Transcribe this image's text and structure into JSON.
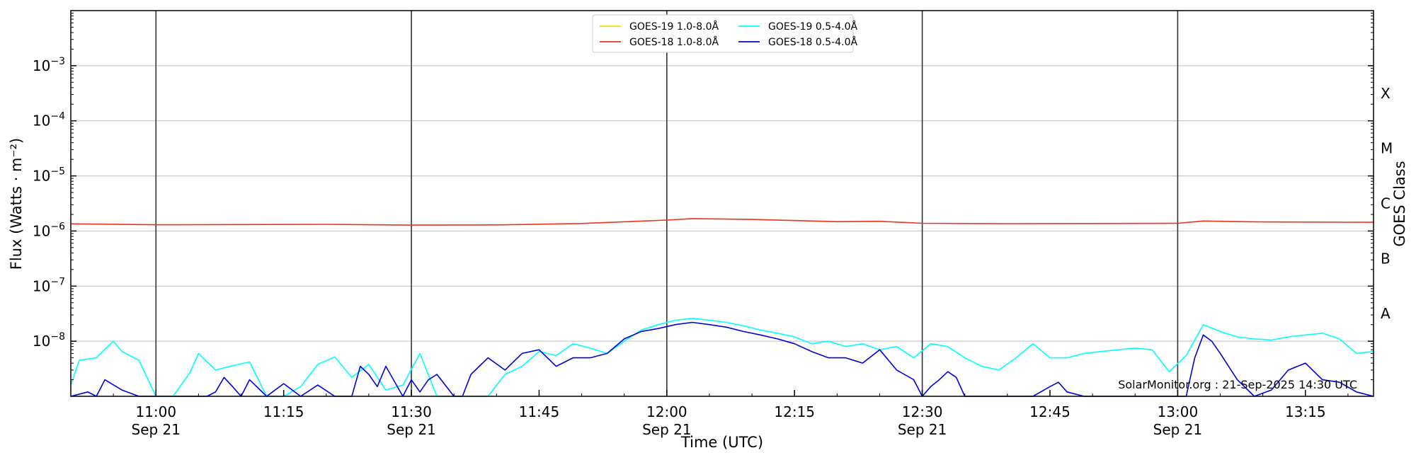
{
  "chart_data": {
    "type": "line",
    "xlabel": "Time (UTC)",
    "ylabel": "Flux (Watts · m⁻²)",
    "ylabel_right": "GOES Class",
    "y_scale": "log",
    "ylim": [
      1e-09,
      0.01
    ],
    "xlim": [
      "2025-09-21 10:50",
      "2025-09-21 13:23"
    ],
    "grid": "horizontal at decades; vertical lines every 30 min",
    "legend_position": "top-center",
    "y_tick_values": [
      0.001,
      0.0001,
      1e-05,
      1e-06,
      1e-07,
      1e-08
    ],
    "y_tick_labels": [
      {
        "base": "10",
        "exp": "−3"
      },
      {
        "base": "10",
        "exp": "−4"
      },
      {
        "base": "10",
        "exp": "−5"
      },
      {
        "base": "10",
        "exp": "−6"
      },
      {
        "base": "10",
        "exp": "−7"
      },
      {
        "base": "10",
        "exp": "−8"
      }
    ],
    "x_ticks": [
      {
        "time": "11:00",
        "label": "11:00",
        "date": "Sep 21",
        "major": true
      },
      {
        "time": "11:15",
        "label": "11:15",
        "date": "",
        "major": false
      },
      {
        "time": "11:30",
        "label": "11:30",
        "date": "Sep 21",
        "major": true
      },
      {
        "time": "11:45",
        "label": "11:45",
        "date": "",
        "major": false
      },
      {
        "time": "12:00",
        "label": "12:00",
        "date": "Sep 21",
        "major": true
      },
      {
        "time": "12:15",
        "label": "12:15",
        "date": "",
        "major": false
      },
      {
        "time": "12:30",
        "label": "12:30",
        "date": "Sep 21",
        "major": true
      },
      {
        "time": "12:45",
        "label": "12:45",
        "date": "",
        "major": false
      },
      {
        "time": "13:00",
        "label": "13:00",
        "date": "Sep 21",
        "major": true
      },
      {
        "time": "13:15",
        "label": "13:15",
        "date": "",
        "major": false
      }
    ],
    "goes_classes": [
      {
        "label": "X",
        "flux": 0.0001
      },
      {
        "label": "M",
        "flux": 1e-05
      },
      {
        "label": "C",
        "flux": 1e-06
      },
      {
        "label": "B",
        "flux": 1e-07
      },
      {
        "label": "A",
        "flux": 1e-08
      }
    ],
    "credit": "SolarMonitor.org : 21-Sep-2025 14:30 UTC",
    "series": [
      {
        "name": "GOES-19 1.0-8.0Å",
        "color": "#ffd700",
        "x": [],
        "values": []
      },
      {
        "name": "GOES-18 1.0-8.0Å",
        "color": "#e8331e",
        "x": [
          "10:50",
          "11:00",
          "11:10",
          "11:20",
          "11:30",
          "11:40",
          "11:50",
          "12:00",
          "12:03",
          "12:10",
          "12:20",
          "12:25",
          "12:30",
          "12:40",
          "12:50",
          "13:00",
          "13:03",
          "13:10",
          "13:23"
        ],
        "values": [
          1.35e-06,
          1.3e-06,
          1.31e-06,
          1.32e-06,
          1.28e-06,
          1.29e-06,
          1.37e-06,
          1.58e-06,
          1.68e-06,
          1.62e-06,
          1.48e-06,
          1.5e-06,
          1.38e-06,
          1.36e-06,
          1.37e-06,
          1.38e-06,
          1.52e-06,
          1.46e-06,
          1.44e-06
        ]
      },
      {
        "name": "GOES-19 0.5-4.0Å",
        "color": "#00ffff",
        "x": [
          "10:50",
          "10:51",
          "10:53",
          "10:55",
          "10:56",
          "10:58",
          "11:00",
          "11:02",
          "11:04",
          "11:05",
          "11:07",
          "11:09",
          "11:11",
          "11:13",
          "11:15",
          "11:17",
          "11:19",
          "11:21",
          "11:23",
          "11:25",
          "11:27",
          "11:29",
          "11:31",
          "11:33",
          "11:35",
          "11:37",
          "11:39",
          "11:41",
          "11:43",
          "11:45",
          "11:47",
          "11:49",
          "11:51",
          "11:53",
          "11:55",
          "11:57",
          "11:59",
          "12:01",
          "12:03",
          "12:05",
          "12:07",
          "12:09",
          "12:11",
          "12:13",
          "12:15",
          "12:17",
          "12:19",
          "12:21",
          "12:23",
          "12:25",
          "12:27",
          "12:29",
          "12:31",
          "12:33",
          "12:35",
          "12:37",
          "12:39",
          "12:41",
          "12:43",
          "12:45",
          "12:47",
          "12:49",
          "12:51",
          "12:53",
          "12:55",
          "12:57",
          "12:59",
          "13:01",
          "13:03",
          "13:05",
          "13:07",
          "13:09",
          "13:11",
          "13:13",
          "13:15",
          "13:17",
          "13:19",
          "13:21",
          "13:23"
        ],
        "values": [
          1.6e-09,
          4.5e-09,
          5e-09,
          1e-08,
          6.5e-09,
          4.5e-09,
          1e-09,
          1e-09,
          2.7e-09,
          6e-09,
          3e-09,
          3.6e-09,
          4.2e-09,
          1e-09,
          1e-09,
          1.5e-09,
          3.8e-09,
          5.2e-09,
          2.2e-09,
          3.8e-09,
          1.3e-09,
          1.6e-09,
          6e-09,
          1e-09,
          1e-09,
          1e-09,
          1e-09,
          2.5e-09,
          3.5e-09,
          6.5e-09,
          5.5e-09,
          9e-09,
          7.5e-09,
          6e-09,
          1e-08,
          1.6e-08,
          2e-08,
          2.4e-08,
          2.6e-08,
          2.4e-08,
          2.2e-08,
          1.9e-08,
          1.6e-08,
          1.4e-08,
          1.2e-08,
          9e-09,
          1e-08,
          8e-09,
          9e-09,
          7e-09,
          8e-09,
          5e-09,
          9e-09,
          8e-09,
          5e-09,
          3.5e-09,
          3e-09,
          5e-09,
          9e-09,
          5e-09,
          5e-09,
          6e-09,
          6.5e-09,
          7e-09,
          7.5e-09,
          7e-09,
          2.8e-09,
          5.5e-09,
          2e-08,
          1.5e-08,
          1.2e-08,
          1.1e-08,
          1.05e-08,
          1.2e-08,
          1.3e-08,
          1.4e-08,
          1.1e-08,
          6e-09,
          6.5e-09
        ]
      },
      {
        "name": "GOES-18 0.5-4.0Å",
        "color": "#0000e0",
        "x": [
          "10:50",
          "10:52",
          "10:53",
          "10:54",
          "10:56",
          "10:58",
          "11:00",
          "11:02",
          "11:04",
          "11:06",
          "11:07",
          "11:08",
          "11:09",
          "11:10",
          "11:11",
          "11:13",
          "11:15",
          "11:17",
          "11:19",
          "11:21",
          "11:23",
          "11:24",
          "11:25",
          "11:26",
          "11:27",
          "11:29",
          "11:30",
          "11:31",
          "11:32",
          "11:33",
          "11:35",
          "11:36",
          "11:37",
          "11:39",
          "11:41",
          "11:43",
          "11:45",
          "11:47",
          "11:49",
          "11:51",
          "11:53",
          "11:55",
          "11:57",
          "11:59",
          "12:01",
          "12:03",
          "12:05",
          "12:07",
          "12:09",
          "12:11",
          "12:13",
          "12:15",
          "12:17",
          "12:19",
          "12:21",
          "12:23",
          "12:25",
          "12:27",
          "12:29",
          "12:30",
          "12:31",
          "12:32",
          "12:33",
          "12:34",
          "12:35",
          "12:37",
          "12:39",
          "12:41",
          "12:43",
          "12:45",
          "12:46",
          "12:47",
          "12:49",
          "12:51",
          "12:53",
          "12:55",
          "12:57",
          "12:59",
          "13:01",
          "13:02",
          "13:03",
          "13:04",
          "13:05",
          "13:07",
          "13:09",
          "13:11",
          "13:13",
          "13:15",
          "13:17",
          "13:19",
          "13:21",
          "13:23"
        ],
        "values": [
          1e-09,
          1.2e-09,
          1e-09,
          2e-09,
          1.3e-09,
          1e-09,
          1e-09,
          1e-09,
          1e-09,
          1e-09,
          1.2e-09,
          2.2e-09,
          1.5e-09,
          1e-09,
          2e-09,
          1e-09,
          1.7e-09,
          1e-09,
          1.6e-09,
          1e-09,
          1e-09,
          3.5e-09,
          2.5e-09,
          1.5e-09,
          3.5e-09,
          1e-09,
          2e-09,
          1.2e-09,
          2e-09,
          2.5e-09,
          1e-09,
          1e-09,
          2.5e-09,
          5e-09,
          3e-09,
          6e-09,
          7e-09,
          3.5e-09,
          5e-09,
          5e-09,
          6e-09,
          1.1e-08,
          1.5e-08,
          1.7e-08,
          2e-08,
          2.2e-08,
          2e-08,
          1.8e-08,
          1.5e-08,
          1.3e-08,
          1.1e-08,
          9e-09,
          6.5e-09,
          5e-09,
          5e-09,
          4e-09,
          7e-09,
          3e-09,
          2e-09,
          1e-09,
          1.5e-09,
          2e-09,
          2.8e-09,
          2.2e-09,
          1e-09,
          1e-09,
          1e-09,
          1e-09,
          1e-09,
          1.5e-09,
          1.8e-09,
          1.2e-09,
          1e-09,
          1e-09,
          1e-09,
          1e-09,
          1e-09,
          1e-09,
          1e-09,
          5e-09,
          1.3e-08,
          1e-08,
          6e-09,
          2e-09,
          1e-09,
          1.3e-09,
          3e-09,
          4e-09,
          2e-09,
          1.8e-09,
          1.2e-09,
          1e-09
        ]
      }
    ]
  }
}
